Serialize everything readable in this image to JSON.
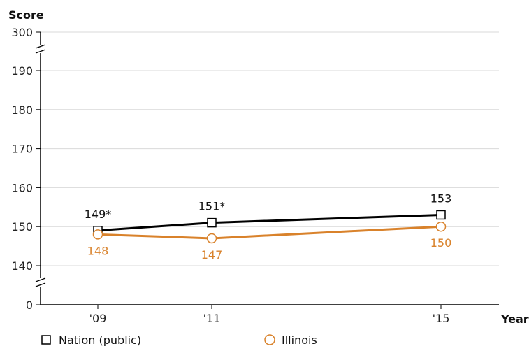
{
  "chart_data": {
    "type": "line",
    "ylabel": "Score",
    "xlabel": "Year",
    "x": [
      "'09",
      "'11",
      "'15"
    ],
    "y_ticks": [
      "0",
      "140",
      "150",
      "160",
      "170",
      "180",
      "190",
      "300"
    ],
    "y_axis_break": true,
    "ylim": [
      140,
      190
    ],
    "grid": true,
    "legend_position": "bottom-left",
    "series": [
      {
        "name": "Nation (public)",
        "marker": "square",
        "color": "#000000",
        "values": [
          149,
          151,
          153
        ],
        "labels": [
          "149*",
          "151*",
          "153"
        ]
      },
      {
        "name": "Illinois",
        "marker": "circle",
        "color": "#D9822B",
        "values": [
          148,
          147,
          150
        ],
        "labels": [
          "148",
          "147",
          "150"
        ]
      }
    ]
  }
}
